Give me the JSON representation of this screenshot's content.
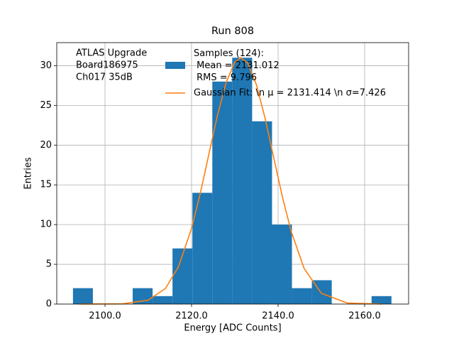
{
  "chart_data": {
    "type": "histogram",
    "title": "Run 808",
    "x_label": "Energy [ADC Counts]",
    "y_label": "Entries",
    "annotation": [
      "ATLAS Upgrade",
      "Board186975",
      "Ch017 35dB"
    ],
    "bins": [
      2092.6,
      2097.2,
      2101.8,
      2106.4,
      2111.0,
      2115.6,
      2120.2,
      2124.8,
      2129.4,
      2134.0,
      2138.6,
      2143.2,
      2147.8,
      2152.4,
      2157.0,
      2161.6,
      2166.2
    ],
    "series": [
      {
        "name": "Samples (124):\n Mean = 2131.012\n RMS = 9.796",
        "type": "histogram",
        "color": "#1f77b4",
        "values": [
          2,
          0,
          0,
          2,
          1,
          7,
          14,
          28,
          31,
          23,
          10,
          2,
          3,
          0,
          0,
          1
        ]
      },
      {
        "name": "Gaussian Fit: \\n μ = 2131.414 \\n σ=7.426",
        "type": "line",
        "color": "#ff7f0e",
        "x": [
          2094,
          2104,
          2110,
          2114,
          2117,
          2120,
          2122,
          2124,
          2126,
          2128,
          2130,
          2131.4,
          2133,
          2135,
          2137,
          2139,
          2141,
          2143,
          2146,
          2150,
          2156,
          2164
        ],
        "values": [
          0.0,
          0.03,
          0.49,
          1.98,
          4.71,
          9.52,
          13.89,
          18.84,
          23.78,
          27.9,
          30.44,
          31.0,
          30.3,
          27.6,
          23.37,
          18.39,
          13.48,
          9.18,
          4.5,
          1.35,
          0.13,
          0.0
        ]
      }
    ],
    "xlim": [
      2088.85,
      2170.16
    ],
    "ylim": [
      0,
      32.9
    ],
    "xticks": [
      {
        "value": 2100,
        "label": "2100.0"
      },
      {
        "value": 2120,
        "label": "2120.0"
      },
      {
        "value": 2140,
        "label": "2140.0"
      },
      {
        "value": 2160,
        "label": "2160.0"
      }
    ],
    "yticks": [
      0,
      5,
      10,
      15,
      20,
      25,
      30
    ],
    "grid": true
  }
}
